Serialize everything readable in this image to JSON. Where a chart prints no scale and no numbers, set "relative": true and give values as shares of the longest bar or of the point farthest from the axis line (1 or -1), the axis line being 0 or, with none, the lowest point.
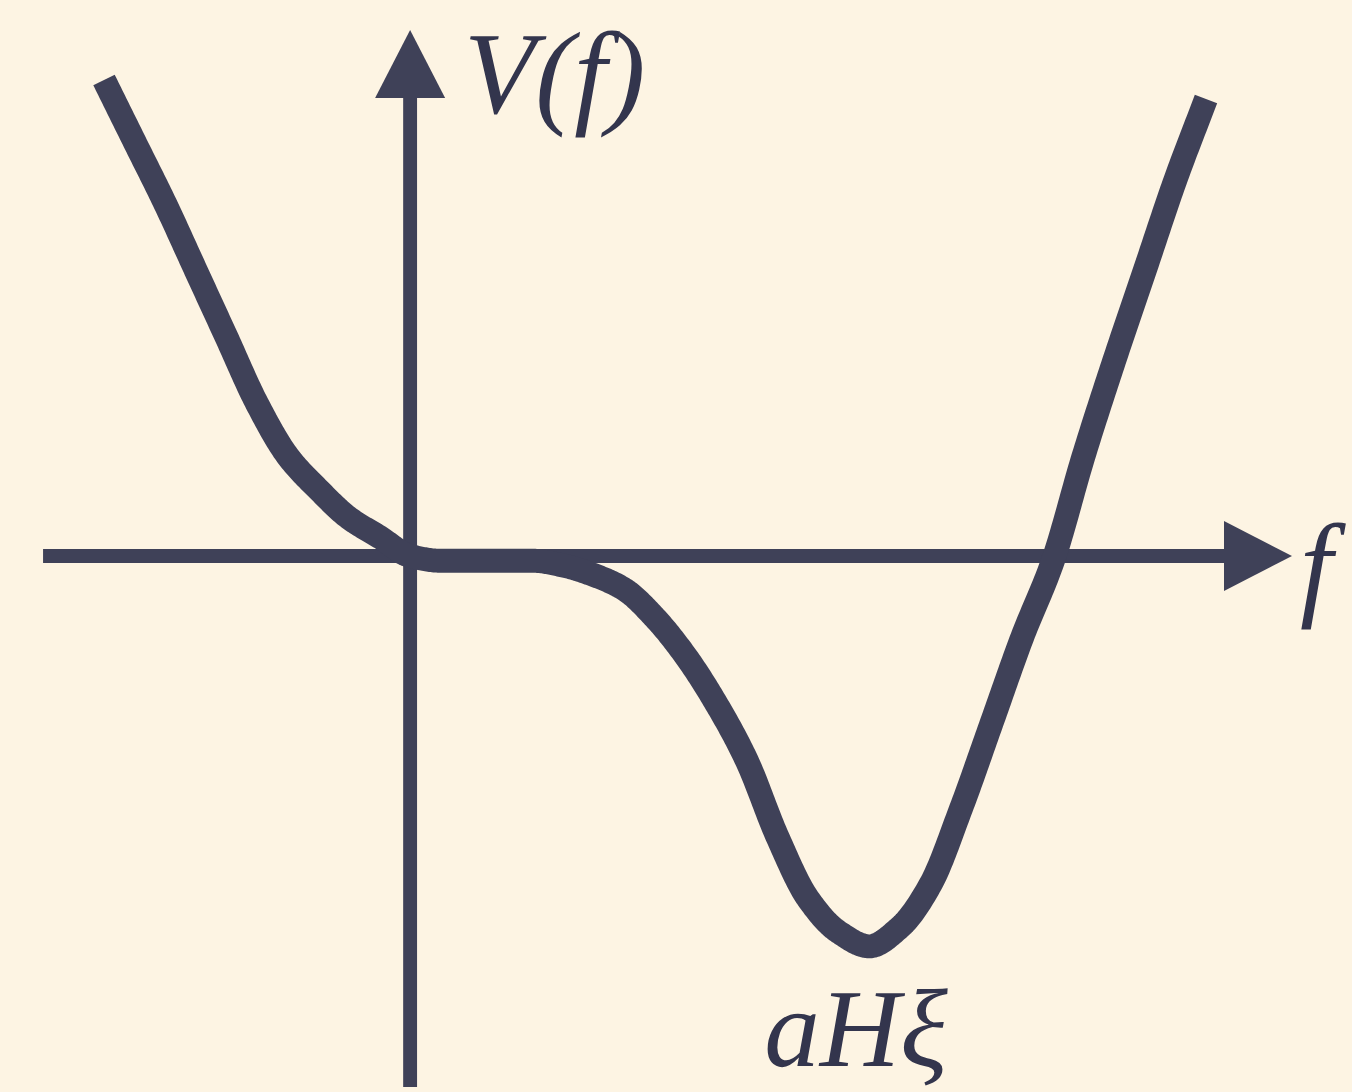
{
  "chart_data": {
    "type": "line",
    "relative": true,
    "xlabel": "f",
    "ylabel": "V(f)",
    "annotations": [
      "aHξ"
    ],
    "color": "#3f4158",
    "line_style": "solid",
    "categories": [
      null,
      null,
      null,
      null,
      null,
      null,
      null,
      null,
      null,
      null,
      null,
      null,
      null,
      null,
      null,
      null,
      null,
      null,
      null,
      null,
      null,
      null,
      null,
      null,
      null,
      null,
      null,
      null,
      null,
      null,
      null,
      null,
      null,
      null,
      null,
      null,
      null
    ],
    "values": [
      1.0,
      0.87,
      0.74,
      0.6,
      0.46,
      0.32,
      0.21,
      0.14,
      0.08,
      0.04,
      0,
      -0.01,
      -0.01,
      -0.01,
      -0.01,
      -0.02,
      -0.04,
      -0.07,
      -0.13,
      -0.21,
      -0.31,
      -0.43,
      -0.59,
      -0.72,
      -0.79,
      -0.82,
      -0.78,
      -0.69,
      -0.53,
      -0.35,
      -0.17,
      -0.01,
      0.21,
      0.41,
      0.6,
      0.79,
      0.96
    ]
  }
}
